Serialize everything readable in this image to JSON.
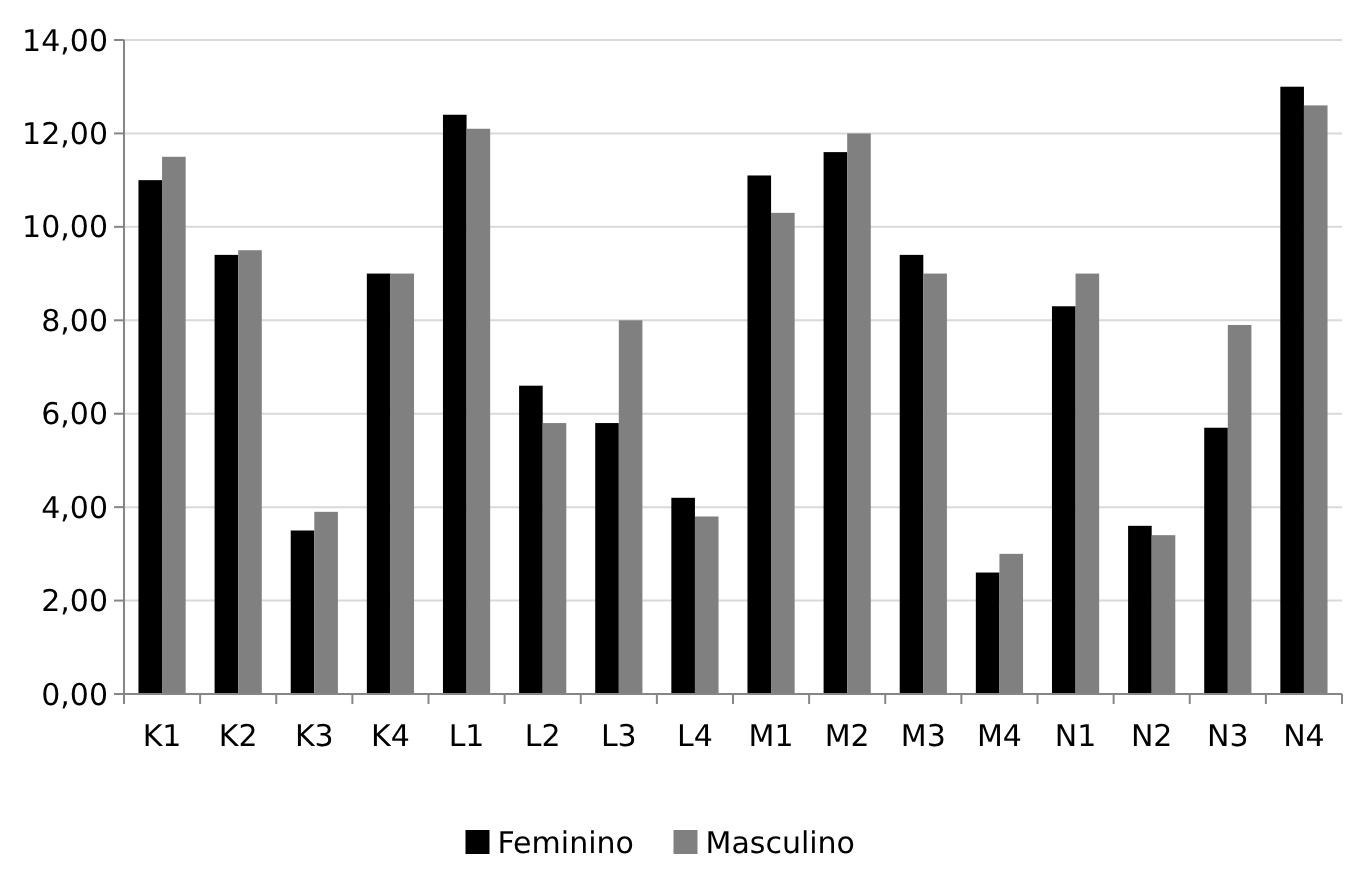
{
  "chart_data": {
    "type": "bar",
    "categories": [
      "K1",
      "K2",
      "K3",
      "K4",
      "L1",
      "L2",
      "L3",
      "L4",
      "M1",
      "M2",
      "M3",
      "M4",
      "N1",
      "N2",
      "N3",
      "N4"
    ],
    "series": [
      {
        "name": "Feminino",
        "color": "#000000",
        "values": [
          11.0,
          9.4,
          3.5,
          9.0,
          12.4,
          6.6,
          5.8,
          4.2,
          11.1,
          11.6,
          9.4,
          2.6,
          8.3,
          3.6,
          5.7,
          13.0
        ]
      },
      {
        "name": "Masculino",
        "color": "#808080",
        "values": [
          11.5,
          9.5,
          3.9,
          9.0,
          12.1,
          5.8,
          8.0,
          3.8,
          10.3,
          12.0,
          9.0,
          3.0,
          9.0,
          3.4,
          7.9,
          12.6
        ]
      }
    ],
    "ylim": [
      0,
      14
    ],
    "yticks": [
      {
        "value": 0,
        "label": "0,00"
      },
      {
        "value": 2,
        "label": "2,00"
      },
      {
        "value": 4,
        "label": "4,00"
      },
      {
        "value": 6,
        "label": "6,00"
      },
      {
        "value": 8,
        "label": "8,00"
      },
      {
        "value": 10,
        "label": "10,00"
      },
      {
        "value": 12,
        "label": "12,00"
      },
      {
        "value": 14,
        "label": "14,00"
      }
    ],
    "grid": "y",
    "legend": "bottom"
  }
}
